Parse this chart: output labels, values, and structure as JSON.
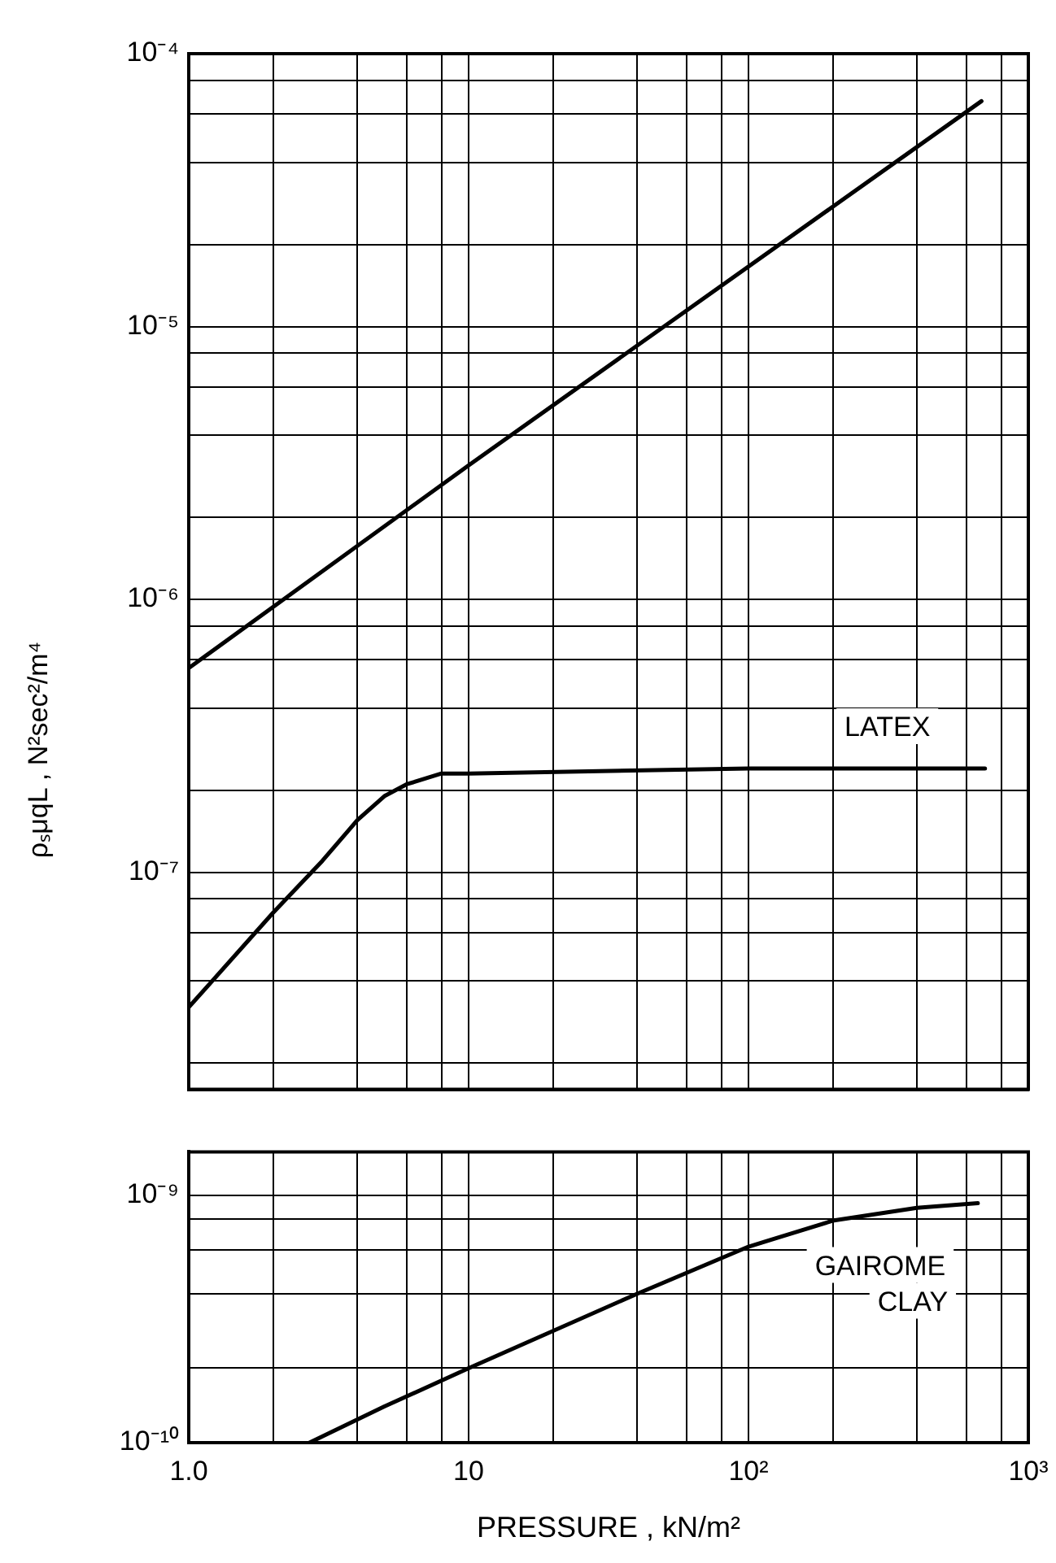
{
  "chart_data": [
    {
      "type": "line",
      "ylabel": "ρₛμqL , N²sec²/m⁴",
      "log": "xy",
      "grid": true,
      "legend": false,
      "marker": "none",
      "line_style": "solid",
      "tick_labels": "y",
      "xlim": [
        1,
        1000
      ],
      "xticks": [
        {
          "value": 1,
          "label": null
        },
        {
          "value": 2,
          "label": null
        },
        {
          "value": 4,
          "label": null
        },
        {
          "value": 6,
          "label": null
        },
        {
          "value": 8,
          "label": null
        },
        {
          "value": 10,
          "label": null
        },
        {
          "value": 20,
          "label": null
        },
        {
          "value": 40,
          "label": null
        },
        {
          "value": 60,
          "label": null
        },
        {
          "value": 80,
          "label": null
        },
        {
          "value": 100,
          "label": null
        },
        {
          "value": 200,
          "label": null
        },
        {
          "value": 400,
          "label": null
        },
        {
          "value": 600,
          "label": null
        },
        {
          "value": 800,
          "label": null
        },
        {
          "value": 1000,
          "label": null
        }
      ],
      "ylim": [
        1.6e-08,
        0.0001
      ],
      "yticks": [
        {
          "value": 2e-08,
          "label": null
        },
        {
          "value": 4e-08,
          "label": null
        },
        {
          "value": 6e-08,
          "label": null
        },
        {
          "value": 8e-08,
          "label": null
        },
        {
          "value": 1e-07,
          "label": "10⁻⁷"
        },
        {
          "value": 2e-07,
          "label": null
        },
        {
          "value": 4e-07,
          "label": null
        },
        {
          "value": 6e-07,
          "label": null
        },
        {
          "value": 8e-07,
          "label": null
        },
        {
          "value": 1e-06,
          "label": "10⁻⁶"
        },
        {
          "value": 2e-06,
          "label": null
        },
        {
          "value": 4e-06,
          "label": null
        },
        {
          "value": 6e-06,
          "label": null
        },
        {
          "value": 8e-06,
          "label": null
        },
        {
          "value": 1e-05,
          "label": "10⁻⁵"
        },
        {
          "value": 2e-05,
          "label": null
        },
        {
          "value": 4e-05,
          "label": null
        },
        {
          "value": 6e-05,
          "label": null
        },
        {
          "value": 8e-05,
          "label": null
        },
        {
          "value": 0.0001,
          "label": "10⁻⁴"
        }
      ],
      "series": [
        {
          "color": "#000000",
          "x": [
            1,
            10,
            680
          ],
          "values": [
            5.6e-07,
            3.1e-06,
            6.7e-05
          ]
        },
        {
          "name": "LATEX",
          "color": "#000000",
          "x": [
            1,
            2,
            3,
            4,
            5,
            6,
            8,
            10,
            100,
            700
          ],
          "values": [
            3.2e-08,
            7.1e-08,
            1.1e-07,
            1.55e-07,
            1.9e-07,
            2.1e-07,
            2.3e-07,
            2.3e-07,
            2.4e-07,
            2.4e-07
          ]
        }
      ]
    },
    {
      "type": "line",
      "xlabel": "PRESSURE , kN/m²",
      "log": "xy",
      "grid": true,
      "legend": false,
      "marker": "none",
      "line_style": "solid",
      "xlim": [
        1,
        1000
      ],
      "xticks": [
        {
          "value": 1,
          "label": "1.0"
        },
        {
          "value": 2,
          "label": null
        },
        {
          "value": 4,
          "label": null
        },
        {
          "value": 6,
          "label": null
        },
        {
          "value": 8,
          "label": null
        },
        10,
        {
          "value": 20,
          "label": null
        },
        {
          "value": 40,
          "label": null
        },
        {
          "value": 60,
          "label": null
        },
        {
          "value": 80,
          "label": null
        },
        {
          "value": 100,
          "label": "10²"
        },
        {
          "value": 200,
          "label": null
        },
        {
          "value": 400,
          "label": null
        },
        {
          "value": 600,
          "label": null
        },
        {
          "value": 800,
          "label": null
        },
        {
          "value": 1000,
          "label": "10³"
        }
      ],
      "ylim": [
        1e-10,
        1.5e-09
      ],
      "yticks": [
        {
          "value": 1e-10,
          "label": "10⁻¹⁰"
        },
        {
          "value": 2e-10,
          "label": null
        },
        {
          "value": 4e-10,
          "label": null
        },
        {
          "value": 6e-10,
          "label": null
        },
        {
          "value": 8e-10,
          "label": null
        },
        {
          "value": 1e-09,
          "label": "10⁻⁹"
        }
      ],
      "series": [
        {
          "name": "GAIROME CLAY",
          "color": "#000000",
          "x": [
            2.7,
            5,
            10,
            40,
            100,
            200,
            400,
            660
          ],
          "values": [
            1e-10,
            1.4e-10,
            2e-10,
            4e-10,
            6.2e-10,
            7.9e-10,
            8.9e-10,
            9.3e-10
          ]
        }
      ]
    }
  ]
}
